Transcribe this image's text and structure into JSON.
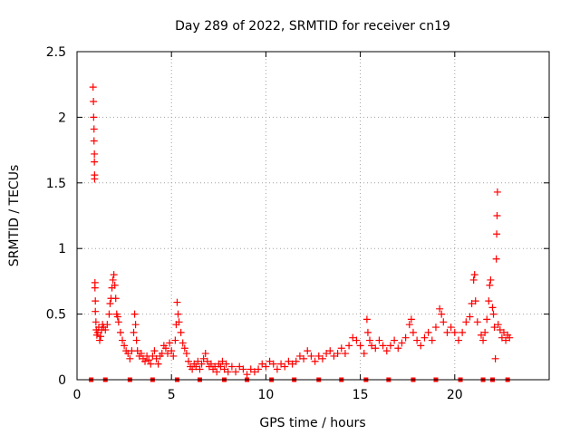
{
  "chart_data": {
    "type": "scatter",
    "title": "Day 289 of 2022, SRMTID for receiver cn19",
    "xlabel": "GPS time / hours",
    "ylabel": "SRMTID / TECUs",
    "xlim": [
      0,
      25
    ],
    "ylim": [
      0,
      2.5
    ],
    "x_ticks": [
      0,
      5,
      10,
      15,
      20
    ],
    "y_ticks": [
      0,
      0.5,
      1,
      1.5,
      2,
      2.5
    ],
    "x_tick_labels": [
      "0",
      "5",
      "10",
      "15",
      "20"
    ],
    "y_tick_labels": [
      "0",
      "0.5",
      "1",
      "1.5",
      "2",
      "2.5"
    ],
    "grid": true,
    "marker": "+",
    "color": "#ff0000",
    "zero_markers_x": [
      0.75,
      1.5,
      2.8,
      4.0,
      5.3,
      6.5,
      7.8,
      9.0,
      10.3,
      11.5,
      12.8,
      14.0,
      15.3,
      16.5,
      17.8,
      19.0,
      20.3,
      21.5,
      22.0,
      22.8
    ],
    "series": [
      {
        "name": "SRMTID",
        "points": [
          [
            0.85,
            2.23
          ],
          [
            0.87,
            2.12
          ],
          [
            0.88,
            2.0
          ],
          [
            0.9,
            1.91
          ],
          [
            0.9,
            1.82
          ],
          [
            0.92,
            1.72
          ],
          [
            0.92,
            1.66
          ],
          [
            0.93,
            1.56
          ],
          [
            0.93,
            1.53
          ],
          [
            0.95,
            0.74
          ],
          [
            0.95,
            0.7
          ],
          [
            0.97,
            0.6
          ],
          [
            0.97,
            0.52
          ],
          [
            1.0,
            0.44
          ],
          [
            1.02,
            0.38
          ],
          [
            1.05,
            0.34
          ],
          [
            1.1,
            0.36
          ],
          [
            1.15,
            0.4
          ],
          [
            1.2,
            0.3
          ],
          [
            1.25,
            0.33
          ],
          [
            1.3,
            0.38
          ],
          [
            1.35,
            0.42
          ],
          [
            1.4,
            0.4
          ],
          [
            1.5,
            0.38
          ],
          [
            1.6,
            0.42
          ],
          [
            1.7,
            0.5
          ],
          [
            1.75,
            0.58
          ],
          [
            1.8,
            0.62
          ],
          [
            1.85,
            0.7
          ],
          [
            1.9,
            0.76
          ],
          [
            1.95,
            0.8
          ],
          [
            2.0,
            0.72
          ],
          [
            2.05,
            0.62
          ],
          [
            2.1,
            0.5
          ],
          [
            2.15,
            0.48
          ],
          [
            2.2,
            0.44
          ],
          [
            2.3,
            0.36
          ],
          [
            2.4,
            0.3
          ],
          [
            2.5,
            0.26
          ],
          [
            2.6,
            0.22
          ],
          [
            2.7,
            0.2
          ],
          [
            2.8,
            0.16
          ],
          [
            2.9,
            0.22
          ],
          [
            3.0,
            0.36
          ],
          [
            3.05,
            0.5
          ],
          [
            3.1,
            0.42
          ],
          [
            3.15,
            0.3
          ],
          [
            3.2,
            0.22
          ],
          [
            3.3,
            0.18
          ],
          [
            3.4,
            0.2
          ],
          [
            3.5,
            0.16
          ],
          [
            3.6,
            0.14
          ],
          [
            3.7,
            0.18
          ],
          [
            3.8,
            0.15
          ],
          [
            3.9,
            0.12
          ],
          [
            4.0,
            0.18
          ],
          [
            4.1,
            0.22
          ],
          [
            4.2,
            0.16
          ],
          [
            4.3,
            0.12
          ],
          [
            4.4,
            0.18
          ],
          [
            4.5,
            0.2
          ],
          [
            4.6,
            0.26
          ],
          [
            4.7,
            0.24
          ],
          [
            4.8,
            0.2
          ],
          [
            4.9,
            0.28
          ],
          [
            5.0,
            0.22
          ],
          [
            5.1,
            0.18
          ],
          [
            5.2,
            0.3
          ],
          [
            5.25,
            0.42
          ],
          [
            5.3,
            0.59
          ],
          [
            5.35,
            0.5
          ],
          [
            5.4,
            0.44
          ],
          [
            5.5,
            0.36
          ],
          [
            5.6,
            0.28
          ],
          [
            5.7,
            0.24
          ],
          [
            5.8,
            0.2
          ],
          [
            5.9,
            0.14
          ],
          [
            6.0,
            0.1
          ],
          [
            6.1,
            0.08
          ],
          [
            6.2,
            0.12
          ],
          [
            6.3,
            0.1
          ],
          [
            6.4,
            0.14
          ],
          [
            6.5,
            0.08
          ],
          [
            6.6,
            0.12
          ],
          [
            6.7,
            0.16
          ],
          [
            6.8,
            0.2
          ],
          [
            6.9,
            0.14
          ],
          [
            7.0,
            0.1
          ],
          [
            7.1,
            0.12
          ],
          [
            7.2,
            0.08
          ],
          [
            7.3,
            0.1
          ],
          [
            7.4,
            0.06
          ],
          [
            7.5,
            0.12
          ],
          [
            7.6,
            0.1
          ],
          [
            7.7,
            0.14
          ],
          [
            7.8,
            0.08
          ],
          [
            7.9,
            0.12
          ],
          [
            8.0,
            0.06
          ],
          [
            8.2,
            0.1
          ],
          [
            8.4,
            0.06
          ],
          [
            8.6,
            0.1
          ],
          [
            8.8,
            0.08
          ],
          [
            9.0,
            0.04
          ],
          [
            9.2,
            0.08
          ],
          [
            9.4,
            0.06
          ],
          [
            9.6,
            0.08
          ],
          [
            9.8,
            0.12
          ],
          [
            10.0,
            0.1
          ],
          [
            10.2,
            0.14
          ],
          [
            10.4,
            0.12
          ],
          [
            10.6,
            0.08
          ],
          [
            10.8,
            0.12
          ],
          [
            11.0,
            0.1
          ],
          [
            11.2,
            0.14
          ],
          [
            11.4,
            0.12
          ],
          [
            11.6,
            0.14
          ],
          [
            11.8,
            0.18
          ],
          [
            12.0,
            0.16
          ],
          [
            12.2,
            0.22
          ],
          [
            12.4,
            0.18
          ],
          [
            12.6,
            0.14
          ],
          [
            12.8,
            0.18
          ],
          [
            13.0,
            0.16
          ],
          [
            13.2,
            0.2
          ],
          [
            13.4,
            0.22
          ],
          [
            13.6,
            0.18
          ],
          [
            13.8,
            0.2
          ],
          [
            14.0,
            0.24
          ],
          [
            14.2,
            0.2
          ],
          [
            14.4,
            0.26
          ],
          [
            14.6,
            0.32
          ],
          [
            14.8,
            0.3
          ],
          [
            15.0,
            0.26
          ],
          [
            15.2,
            0.2
          ],
          [
            15.35,
            0.46
          ],
          [
            15.4,
            0.36
          ],
          [
            15.5,
            0.3
          ],
          [
            15.6,
            0.26
          ],
          [
            15.8,
            0.24
          ],
          [
            16.0,
            0.3
          ],
          [
            16.2,
            0.26
          ],
          [
            16.4,
            0.22
          ],
          [
            16.6,
            0.26
          ],
          [
            16.8,
            0.3
          ],
          [
            17.0,
            0.24
          ],
          [
            17.2,
            0.28
          ],
          [
            17.4,
            0.32
          ],
          [
            17.6,
            0.42
          ],
          [
            17.7,
            0.46
          ],
          [
            17.8,
            0.36
          ],
          [
            18.0,
            0.3
          ],
          [
            18.2,
            0.26
          ],
          [
            18.4,
            0.32
          ],
          [
            18.6,
            0.36
          ],
          [
            18.8,
            0.3
          ],
          [
            19.0,
            0.4
          ],
          [
            19.2,
            0.54
          ],
          [
            19.3,
            0.5
          ],
          [
            19.4,
            0.44
          ],
          [
            19.6,
            0.36
          ],
          [
            19.8,
            0.4
          ],
          [
            20.0,
            0.36
          ],
          [
            20.2,
            0.3
          ],
          [
            20.4,
            0.36
          ],
          [
            20.6,
            0.44
          ],
          [
            20.8,
            0.48
          ],
          [
            20.9,
            0.58
          ],
          [
            21.0,
            0.76
          ],
          [
            21.05,
            0.8
          ],
          [
            21.1,
            0.6
          ],
          [
            21.2,
            0.44
          ],
          [
            21.4,
            0.34
          ],
          [
            21.5,
            0.3
          ],
          [
            21.6,
            0.36
          ],
          [
            21.7,
            0.46
          ],
          [
            21.8,
            0.6
          ],
          [
            21.85,
            0.72
          ],
          [
            21.9,
            0.76
          ],
          [
            22.0,
            0.55
          ],
          [
            22.05,
            0.5
          ],
          [
            22.1,
            0.4
          ],
          [
            22.15,
            0.16
          ],
          [
            22.2,
            0.92
          ],
          [
            22.22,
            1.11
          ],
          [
            22.24,
            1.25
          ],
          [
            22.26,
            1.43
          ],
          [
            22.3,
            0.42
          ],
          [
            22.4,
            0.38
          ],
          [
            22.5,
            0.32
          ],
          [
            22.6,
            0.36
          ],
          [
            22.7,
            0.3
          ],
          [
            22.8,
            0.34
          ],
          [
            22.9,
            0.32
          ]
        ]
      }
    ]
  }
}
